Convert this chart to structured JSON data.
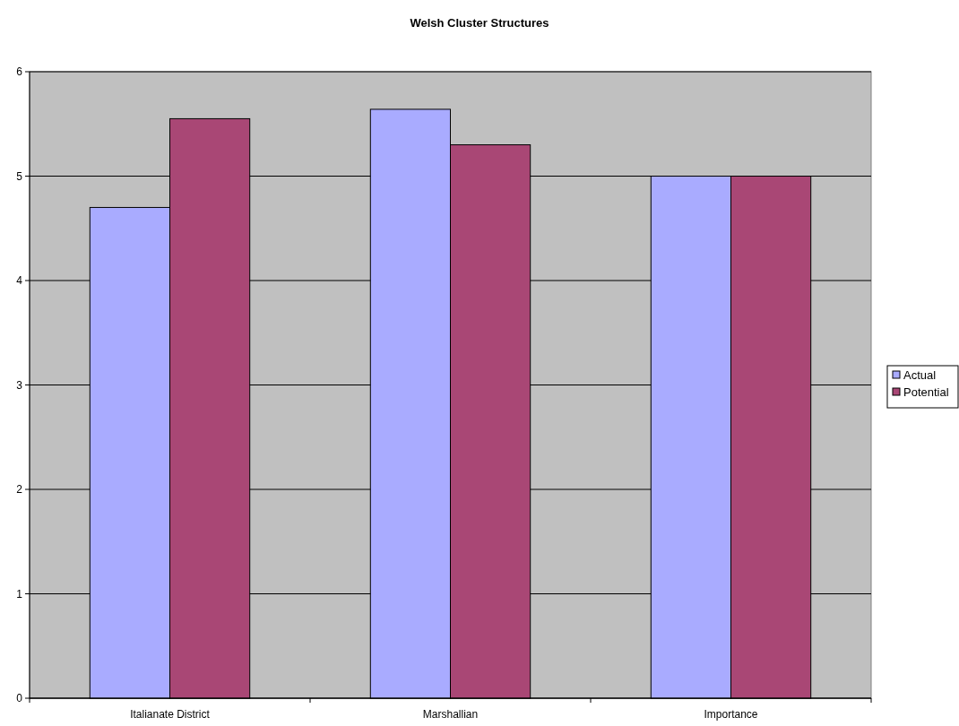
{
  "chart_data": {
    "type": "bar",
    "title": "Welsh Cluster Structures",
    "categories": [
      "Italianate District",
      "Marshallian",
      "Importance"
    ],
    "series": [
      {
        "name": "Actual",
        "color": "#a9abff",
        "values": [
          4.7,
          5.64,
          5
        ]
      },
      {
        "name": "Potential",
        "color": "#a94775",
        "values": [
          5.55,
          5.3,
          5
        ]
      }
    ],
    "ylim": [
      0,
      6
    ],
    "yticks": [
      0,
      1,
      2,
      3,
      4,
      5,
      6
    ],
    "grid": "y",
    "legend": "right"
  }
}
